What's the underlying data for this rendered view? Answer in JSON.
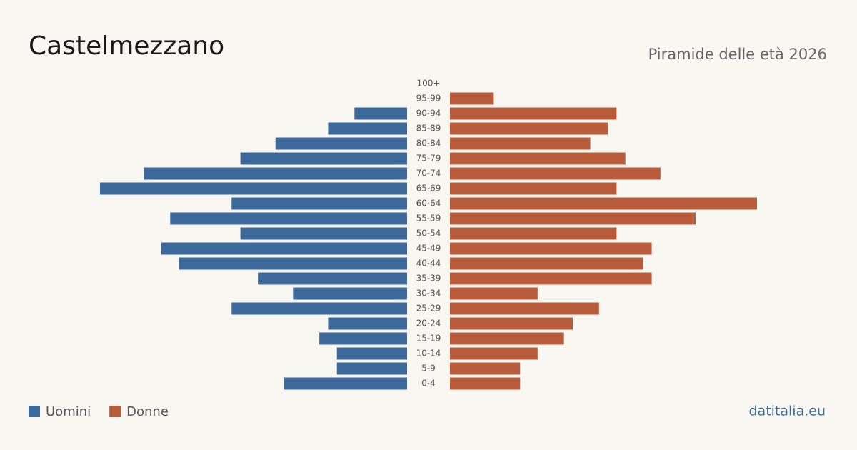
{
  "chart_data": {
    "type": "pyramid",
    "title": "Castelmezzano",
    "subtitle": "Piramide delle età 2026",
    "source": "datitalia.eu",
    "categories": [
      "100+",
      "95-99",
      "90-94",
      "85-89",
      "80-84",
      "75-79",
      "70-74",
      "65-69",
      "60-64",
      "55-59",
      "50-54",
      "45-49",
      "40-44",
      "35-39",
      "30-34",
      "25-29",
      "20-24",
      "15-19",
      "10-14",
      "5-9",
      "0-4"
    ],
    "series": [
      {
        "name": "Uomini",
        "color": "#3d6a9a",
        "values": [
          0,
          0,
          6,
          9,
          15,
          19,
          30,
          35,
          20,
          27,
          19,
          28,
          26,
          17,
          13,
          20,
          9,
          10,
          8,
          8,
          14
        ]
      },
      {
        "name": "Donne",
        "color": "#b85c3c",
        "values": [
          0,
          5,
          19,
          18,
          16,
          20,
          24,
          19,
          35,
          28,
          19,
          23,
          22,
          23,
          10,
          17,
          14,
          13,
          10,
          8,
          8
        ]
      }
    ]
  }
}
